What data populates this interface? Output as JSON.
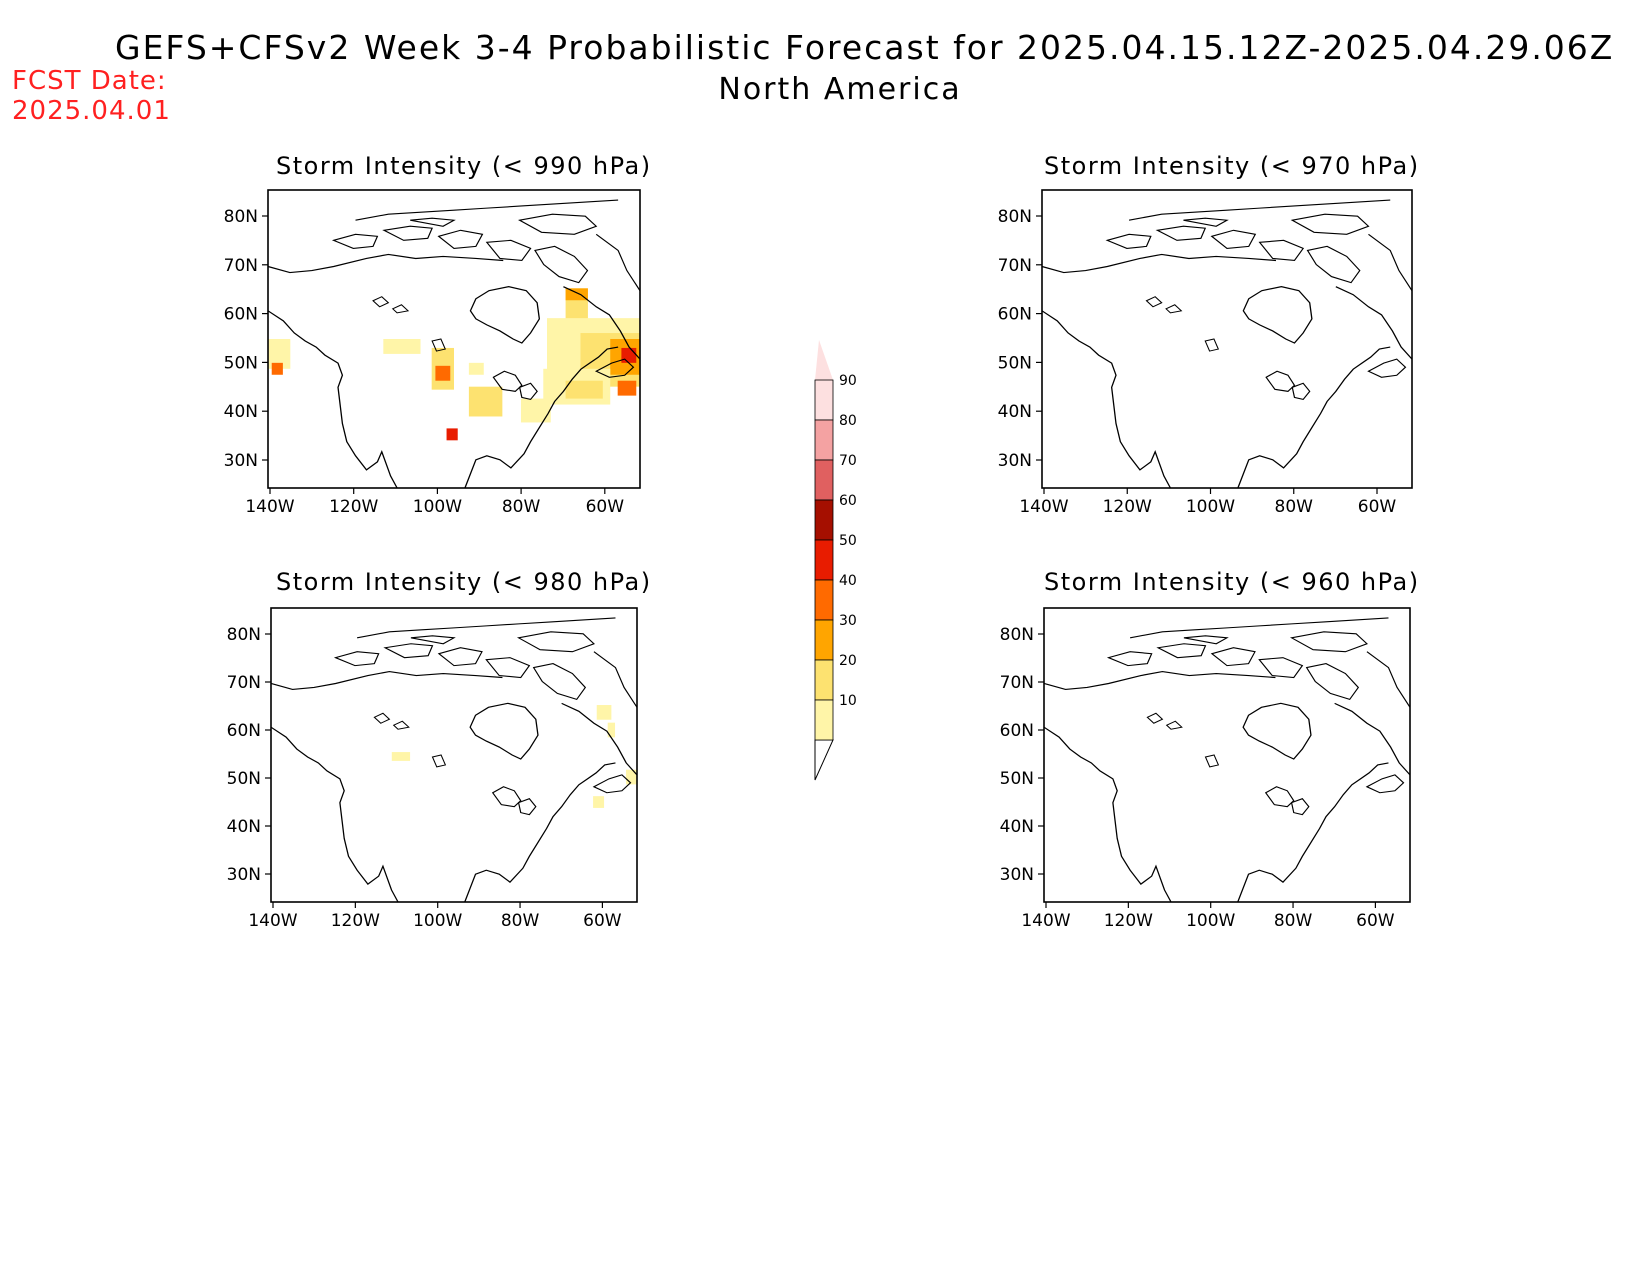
{
  "header": {
    "title": "GEFS+CFSv2 Week 3-4 Probabilistic Forecast for 2025.04.15.12Z-2025.04.29.06Z",
    "subtitle": "North America",
    "fcst_label": "FCST Date:",
    "fcst_date": "2025.04.01"
  },
  "panels": [
    {
      "id": "p990",
      "title": "Storm Intensity (< 990 hPa)"
    },
    {
      "id": "p970",
      "title": "Storm Intensity (< 970 hPa)"
    },
    {
      "id": "p980",
      "title": "Storm Intensity (< 980 hPa)"
    },
    {
      "id": "p960",
      "title": "Storm Intensity (< 960 hPa)"
    }
  ],
  "axes": {
    "lat_ticks": [
      "80N",
      "70N",
      "60N",
      "50N",
      "40N",
      "30N"
    ],
    "lon_ticks": [
      "140W",
      "120W",
      "100W",
      "80W",
      "60W"
    ]
  },
  "colorbar": {
    "labels": [
      "10",
      "20",
      "30",
      "40",
      "50",
      "60",
      "70",
      "80",
      "90"
    ],
    "colors": [
      "#fff5a8",
      "#fde270",
      "#ffa500",
      "#ff6a00",
      "#e81c00",
      "#a50f00",
      "#e06060",
      "#f4a2a2",
      "#fde0e0"
    ]
  }
}
